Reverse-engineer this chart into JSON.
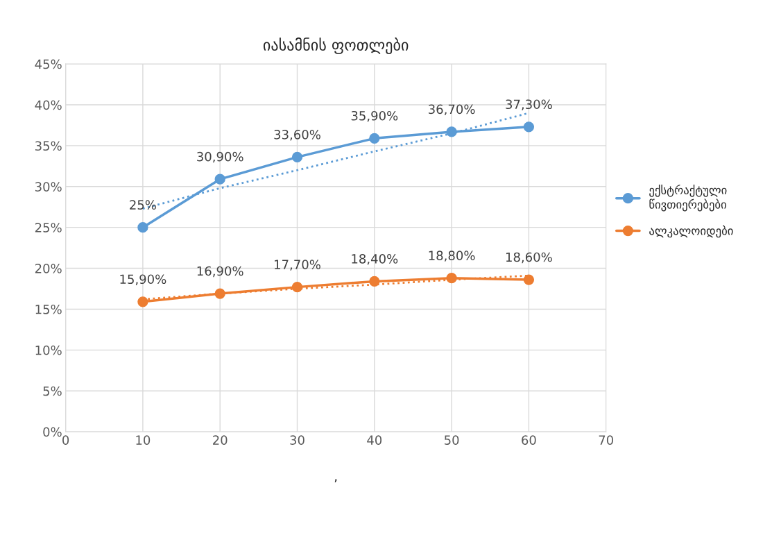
{
  "chart_data": {
    "type": "line",
    "title": "იასამნის ფოთლები",
    "xlabel": ",",
    "x": [
      10,
      20,
      30,
      40,
      50,
      60
    ],
    "series": [
      {
        "name": "ექსტრაქტული წივთიერებები",
        "color": "#5b9bd5",
        "values": [
          25,
          30.9,
          33.6,
          35.9,
          36.7,
          37.3
        ],
        "value_labels": [
          "25%",
          "30,90%",
          "33,60%",
          "35,90%",
          "36,70%",
          "37,30%"
        ],
        "marker": "circle",
        "line_style": "solid"
      },
      {
        "name": "ალკალოიდები",
        "color": "#ed7d31",
        "values": [
          15.9,
          16.9,
          17.7,
          18.4,
          18.8,
          18.6
        ],
        "value_labels": [
          "15,90%",
          "16,90%",
          "17,70%",
          "18,40%",
          "18,80%",
          "18,60%"
        ],
        "marker": "circle",
        "line_style": "solid"
      },
      {
        "color": "#5b9bd5",
        "x": [
          10,
          20,
          30,
          40,
          50,
          60
        ],
        "values": [
          27.3,
          29.8,
          32.0,
          34.3,
          36.5,
          39.0
        ],
        "marker": "none",
        "line_style": "dotted"
      },
      {
        "color": "#ed7d31",
        "x": [
          10,
          20,
          30,
          40,
          50,
          60
        ],
        "values": [
          16.2,
          16.9,
          17.5,
          18.0,
          18.6,
          19.1
        ],
        "marker": "none",
        "line_style": "dotted"
      }
    ],
    "xlim": [
      0,
      70
    ],
    "xticks": [
      0,
      10,
      20,
      30,
      40,
      50,
      60,
      70
    ],
    "ylim": [
      0,
      45
    ],
    "yticks": [
      {
        "value": 0,
        "label": "0%"
      },
      {
        "value": 5,
        "label": "5%"
      },
      {
        "value": 10,
        "label": "10%"
      },
      {
        "value": 15,
        "label": "15%"
      },
      {
        "value": 20,
        "label": "20%"
      },
      {
        "value": 25,
        "label": "25%"
      },
      {
        "value": 30,
        "label": "30%"
      },
      {
        "value": 35,
        "label": "35%"
      },
      {
        "value": 40,
        "label": "40%"
      },
      {
        "value": 45,
        "label": "45%"
      }
    ],
    "grid": true,
    "legend": "right"
  }
}
